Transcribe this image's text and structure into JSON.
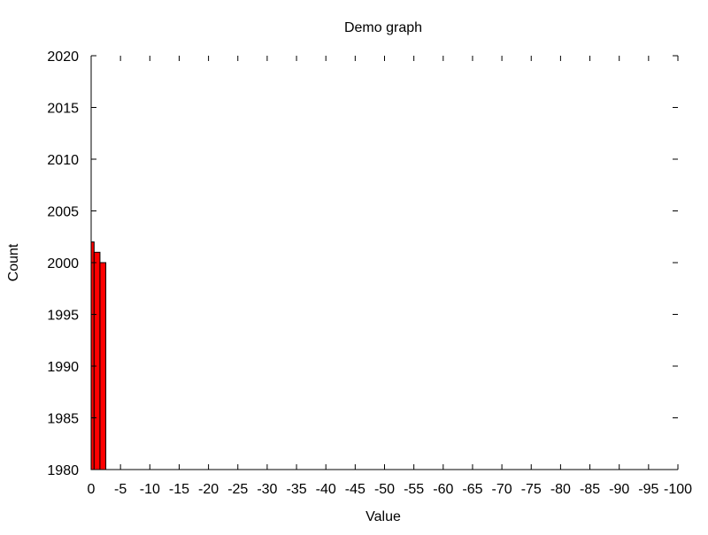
{
  "chart_data": {
    "type": "bar",
    "title": "Demo graph",
    "xlabel": "Value",
    "ylabel": "Count",
    "xlim": [
      0,
      -100
    ],
    "ylim": [
      1980,
      2020
    ],
    "x_ticks": [
      0,
      -5,
      -10,
      -15,
      -20,
      -25,
      -30,
      -35,
      -40,
      -45,
      -50,
      -55,
      -60,
      -65,
      -70,
      -75,
      -80,
      -85,
      -90,
      -95,
      -100
    ],
    "y_ticks": [
      1980,
      1985,
      1990,
      1995,
      2000,
      2005,
      2010,
      2015,
      2020
    ],
    "grid": false,
    "bar_color": "#ff0000",
    "bars": [
      {
        "x0": 0.0,
        "x1": -0.5,
        "value": 2002
      },
      {
        "x0": -0.5,
        "x1": -1.5,
        "value": 2001
      },
      {
        "x0": -1.5,
        "x1": -2.5,
        "value": 2000
      }
    ]
  }
}
